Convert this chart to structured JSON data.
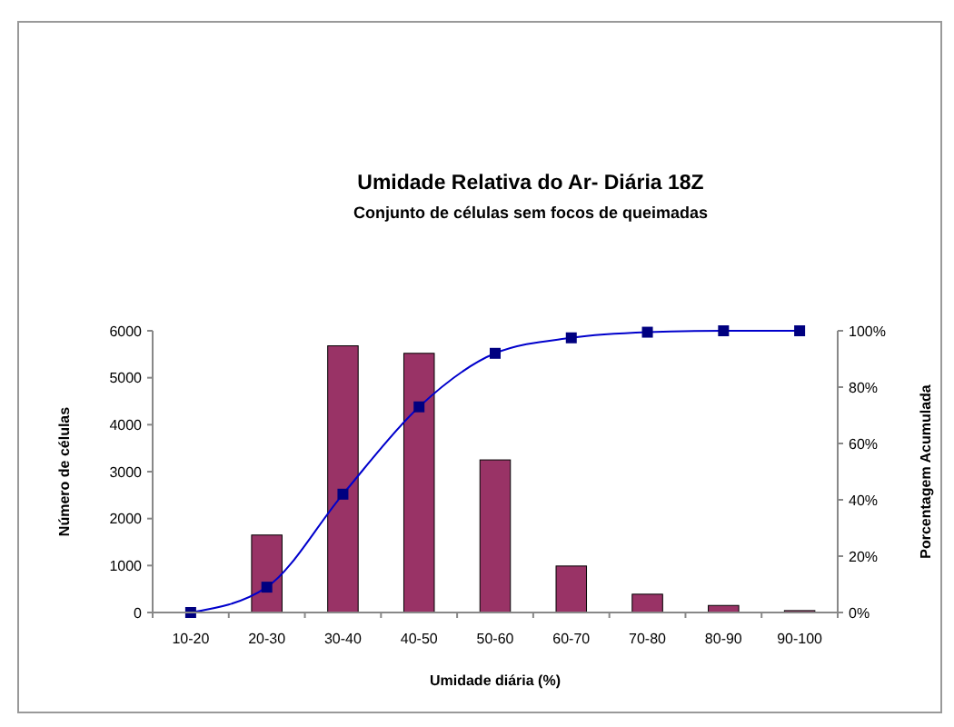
{
  "chart_data": {
    "type": "bar",
    "title": "Umidade Relativa do Ar- Diária 18Z",
    "subtitle": "Conjunto de células sem focos de queimadas",
    "xlabel": "Umidade diária (%)",
    "ylabel": "Número de células",
    "y2label": "Porcentagem Acumulada",
    "categories": [
      "10-20",
      "20-30",
      "30-40",
      "40-50",
      "50-60",
      "60-70",
      "70-80",
      "80-90",
      "90-100"
    ],
    "series": [
      {
        "color": "#993366",
        "values": [
          null,
          1650,
          5680,
          5520,
          3250,
          990,
          390,
          150,
          40
        ]
      },
      {
        "type": "line",
        "axis": "y2",
        "color": "#0000cc",
        "marker": "square",
        "values": [
          0,
          9,
          42,
          73,
          92,
          97.5,
          99.5,
          100,
          100
        ]
      }
    ],
    "ylim": [
      0,
      6000
    ],
    "yticks": [
      0,
      1000,
      2000,
      3000,
      4000,
      5000,
      6000
    ],
    "y2lim": [
      0,
      100
    ],
    "y2ticks": [
      {
        "value": 0,
        "label": "0%"
      },
      {
        "value": 20,
        "label": "20%"
      },
      {
        "value": 40,
        "label": "40%"
      },
      {
        "value": 60,
        "label": "60%"
      },
      {
        "value": 80,
        "label": "80%"
      },
      {
        "value": 100,
        "label": "100%"
      }
    ],
    "grid": false
  }
}
